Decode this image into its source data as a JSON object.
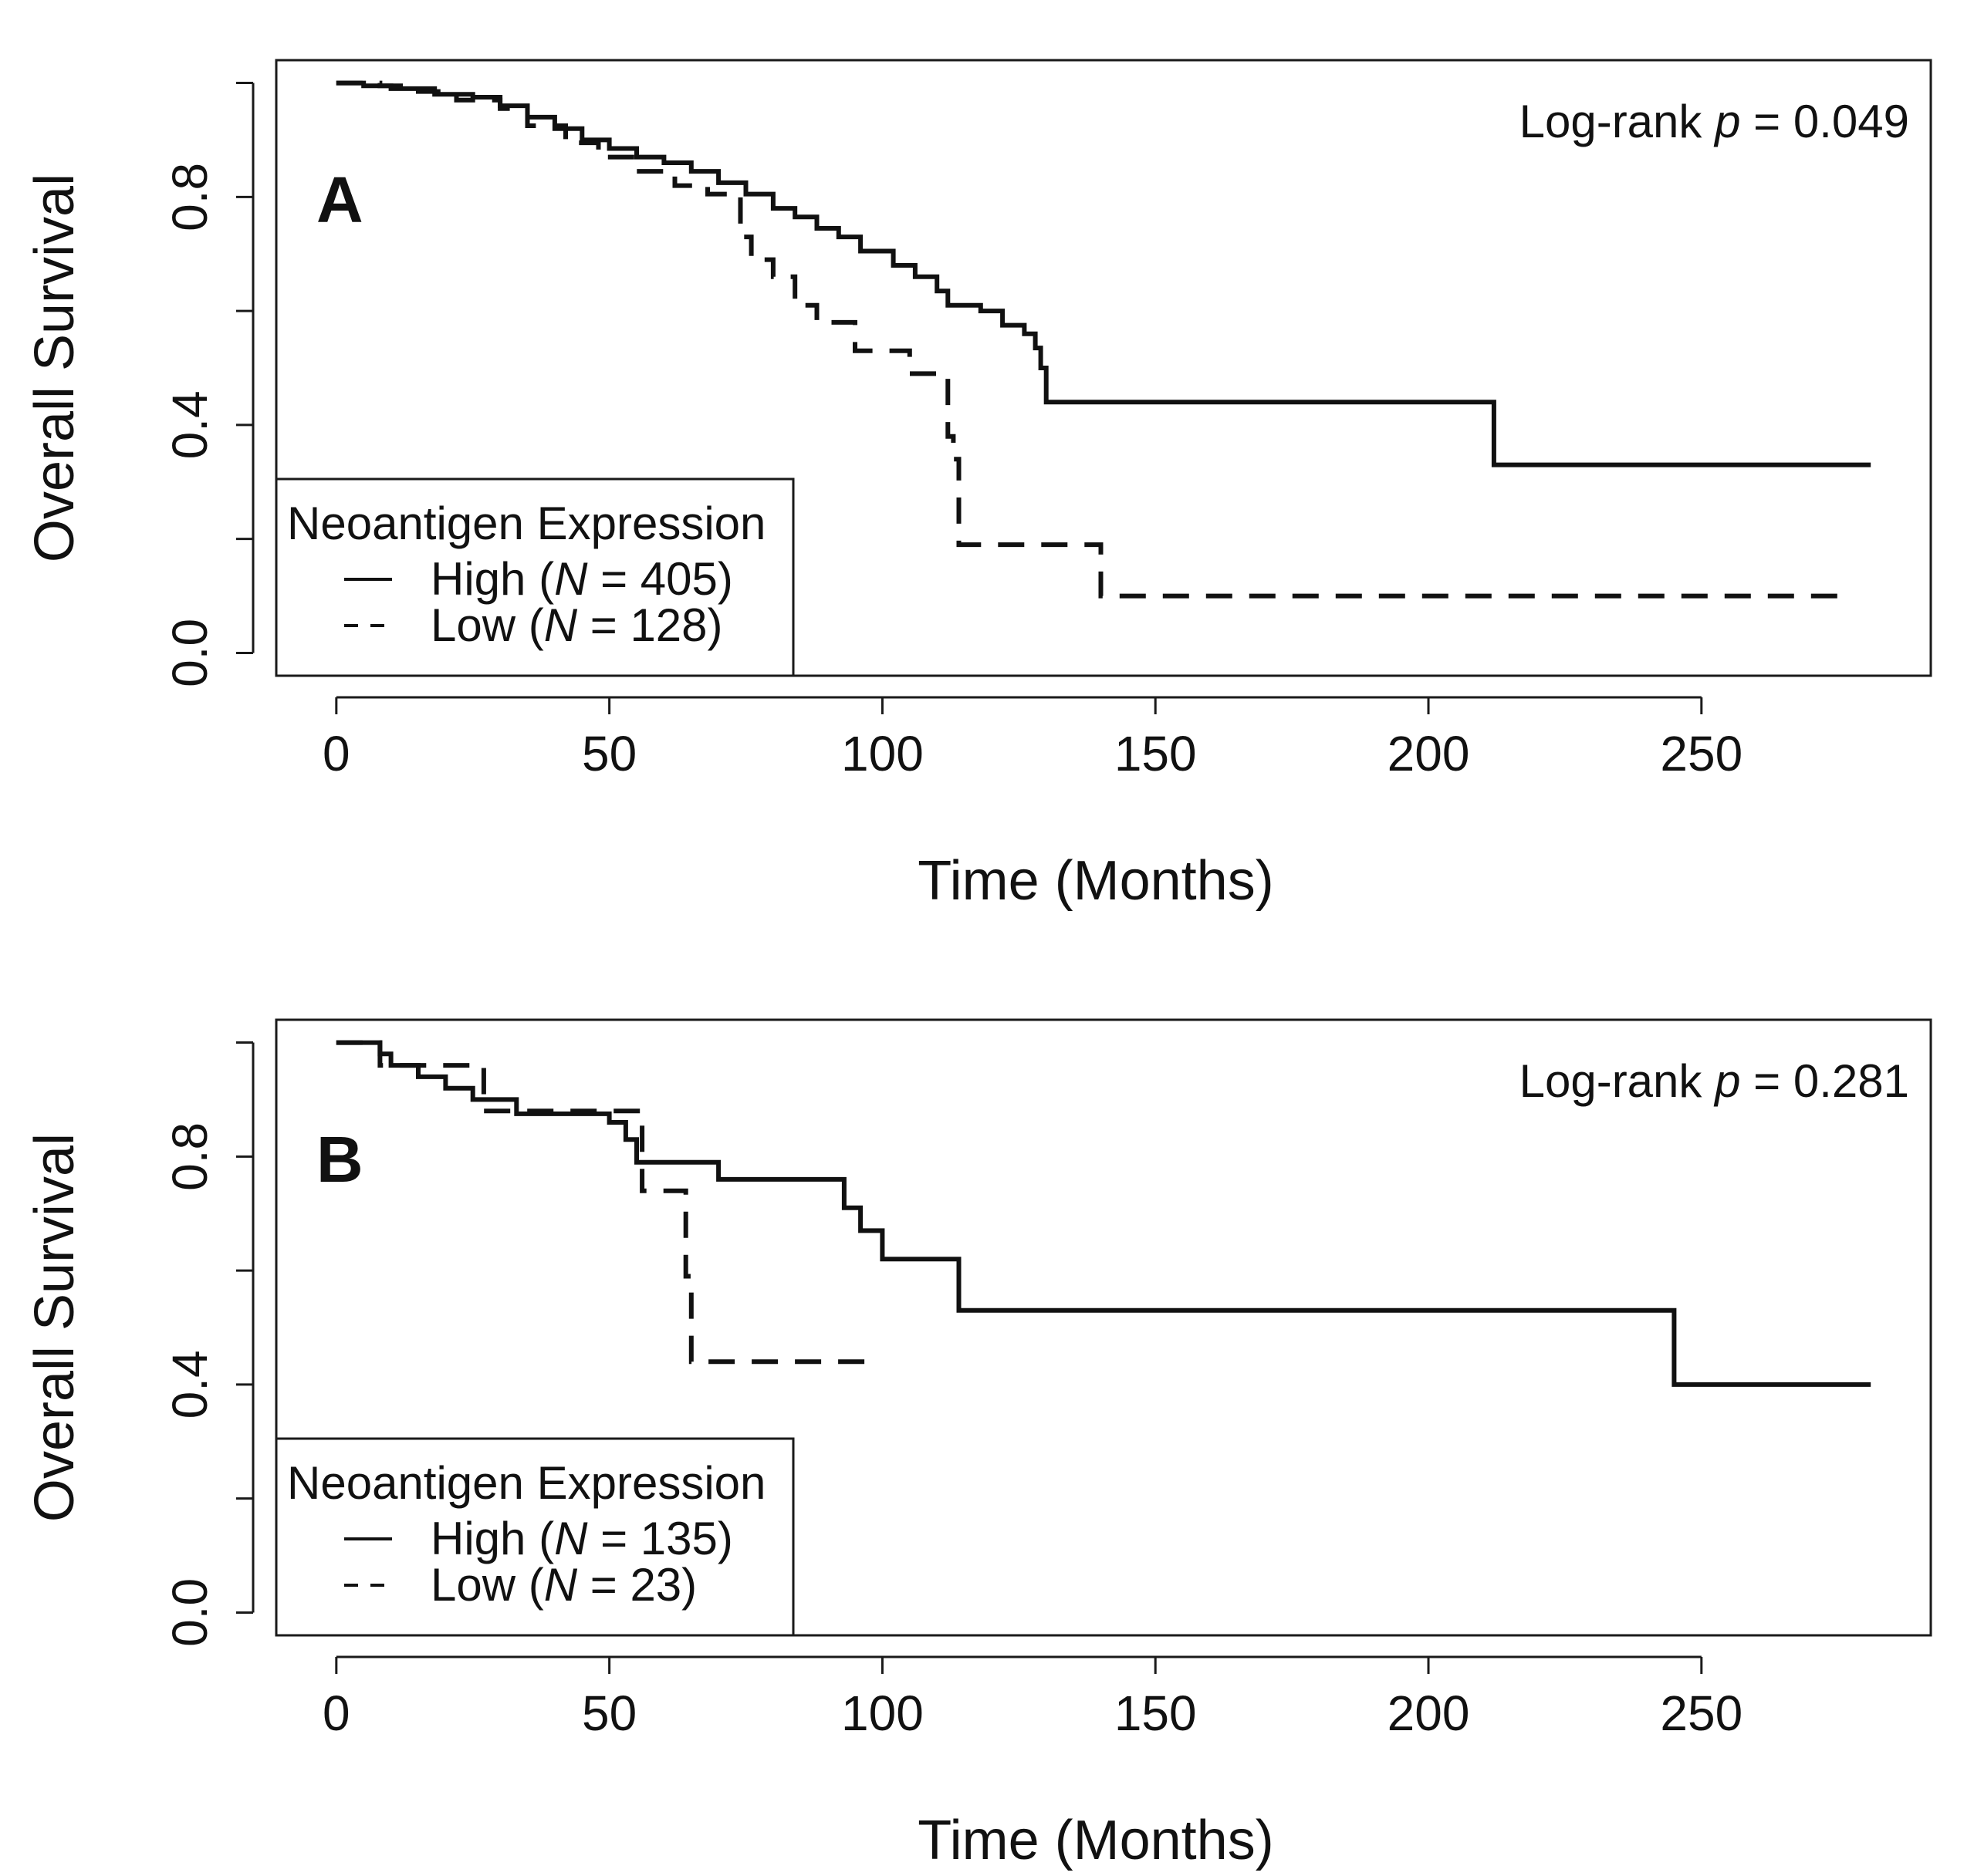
{
  "chart_data": [
    {
      "type": "line",
      "panel_label": "A",
      "annotation": {
        "prefix": "Log-rank ",
        "p": "p",
        "suffix": " = 0.049"
      },
      "xlabel": "Time (Months)",
      "ylabel": "Overall Survival",
      "xlim": [
        -11,
        292
      ],
      "ylim": [
        -0.04,
        1.04
      ],
      "xticks": [
        0,
        50,
        100,
        150,
        200,
        250
      ],
      "xtick_labels": [
        "0",
        "50",
        "100",
        "150",
        "200",
        "250"
      ],
      "yticks": [
        0,
        0.2,
        0.4,
        0.6,
        0.8,
        1.0
      ],
      "ytick_labels": [
        "0.0",
        "",
        "0.4",
        "",
        "0.8",
        ""
      ],
      "grid": false,
      "legend": {
        "title": "Neoantigen Expression",
        "position": "bottom-left",
        "entries": [
          {
            "pre": "High (",
            "n": "N",
            "post": " = 405)"
          },
          {
            "pre": "Low (",
            "n": "N",
            "post": " = 128)"
          }
        ]
      },
      "series": [
        {
          "name": "High",
          "style": "solid",
          "x": [
            0,
            5,
            10,
            18,
            25,
            30,
            35,
            40,
            45,
            50,
            55,
            60,
            65,
            70,
            75,
            80,
            84,
            88,
            92,
            96,
            102,
            106,
            110,
            112,
            118,
            122,
            126,
            128,
            129,
            130,
            212,
            281
          ],
          "y": [
            1.0,
            0.995,
            0.99,
            0.98,
            0.975,
            0.96,
            0.94,
            0.92,
            0.9,
            0.885,
            0.87,
            0.86,
            0.845,
            0.825,
            0.805,
            0.78,
            0.765,
            0.745,
            0.73,
            0.705,
            0.68,
            0.66,
            0.635,
            0.61,
            0.6,
            0.575,
            0.56,
            0.535,
            0.5,
            0.44,
            0.33,
            0.33
          ]
        },
        {
          "name": "Low",
          "style": "dashed",
          "x": [
            0,
            8,
            15,
            22,
            30,
            35,
            42,
            48,
            55,
            62,
            68,
            74,
            76,
            80,
            84,
            88,
            95,
            105,
            112,
            113,
            114,
            120,
            130,
            140,
            150,
            200,
            276
          ],
          "y": [
            1.0,
            0.995,
            0.985,
            0.97,
            0.955,
            0.925,
            0.895,
            0.87,
            0.845,
            0.82,
            0.805,
            0.73,
            0.69,
            0.66,
            0.61,
            0.58,
            0.53,
            0.49,
            0.38,
            0.34,
            0.19,
            0.19,
            0.19,
            0.1,
            0.1,
            0.1,
            0.1
          ]
        }
      ]
    },
    {
      "type": "line",
      "panel_label": "B",
      "annotation": {
        "prefix": "Log-rank ",
        "p": "p",
        "suffix": " = 0.281"
      },
      "xlabel": "Time (Months)",
      "ylabel": "Overall Survival",
      "xlim": [
        -11,
        292
      ],
      "ylim": [
        -0.04,
        1.04
      ],
      "xticks": [
        0,
        50,
        100,
        150,
        200,
        250
      ],
      "xtick_labels": [
        "0",
        "50",
        "100",
        "150",
        "200",
        "250"
      ],
      "yticks": [
        0,
        0.2,
        0.4,
        0.6,
        0.8,
        1.0
      ],
      "ytick_labels": [
        "0.0",
        "",
        "0.4",
        "",
        "0.8",
        ""
      ],
      "grid": false,
      "legend": {
        "title": "Neoantigen Expression",
        "position": "bottom-left",
        "entries": [
          {
            "pre": "High (",
            "n": "N",
            "post": " = 135)"
          },
          {
            "pre": "Low (",
            "n": "N",
            "post": " = 23)"
          }
        ]
      },
      "series": [
        {
          "name": "High",
          "style": "solid",
          "x": [
            0,
            8,
            10,
            15,
            20,
            25,
            33,
            50,
            53,
            55,
            70,
            93,
            96,
            100,
            114,
            245,
            281
          ],
          "y": [
            1.0,
            0.98,
            0.96,
            0.94,
            0.92,
            0.9,
            0.875,
            0.86,
            0.83,
            0.79,
            0.76,
            0.71,
            0.67,
            0.62,
            0.53,
            0.4,
            0.4
          ]
        },
        {
          "name": "Low",
          "style": "dashed",
          "x": [
            0,
            8,
            26,
            27,
            55,
            56,
            63,
            64,
            65,
            97
          ],
          "y": [
            1.0,
            0.96,
            0.96,
            0.88,
            0.88,
            0.74,
            0.74,
            0.59,
            0.44,
            0.44
          ]
        }
      ]
    }
  ]
}
